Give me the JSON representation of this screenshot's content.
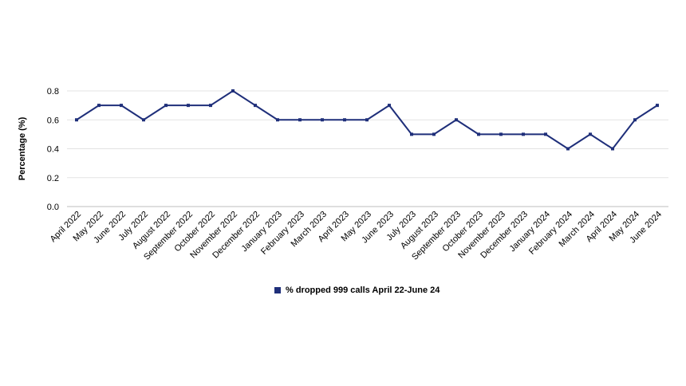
{
  "chart_data": {
    "type": "line",
    "ylabel": "Percentage (%)",
    "xlabel": "",
    "ylim": [
      0,
      0.8
    ],
    "yticks": [
      "0.0",
      "0.2",
      "0.4",
      "0.6",
      "0.8"
    ],
    "grid": true,
    "legend_position": "bottom",
    "categories": [
      "April 2022",
      "May 2022",
      "June 2022",
      "July 2022",
      "August 2022",
      "September 2022",
      "October 2022",
      "November 2022",
      "December 2022",
      "January 2023",
      "February 2023",
      "March 2023",
      "April 2023",
      "May 2023",
      "June 2023",
      "July 2023",
      "August 2023",
      "September 2023",
      "October 2023",
      "November 2023",
      "December 2023",
      "January 2024",
      "February 2024",
      "March 2024",
      "April 2024",
      "May 2024",
      "June 2024"
    ],
    "series": [
      {
        "name": "% dropped 999 calls April 22-June 24",
        "color": "#1f2f7a",
        "values": [
          0.6,
          0.7,
          0.7,
          0.6,
          0.7,
          0.7,
          0.7,
          0.8,
          0.7,
          0.6,
          0.6,
          0.6,
          0.6,
          0.6,
          0.7,
          0.5,
          0.5,
          0.6,
          0.5,
          0.5,
          0.5,
          0.5,
          0.4,
          0.5,
          0.4,
          0.6,
          0.7
        ]
      }
    ]
  }
}
